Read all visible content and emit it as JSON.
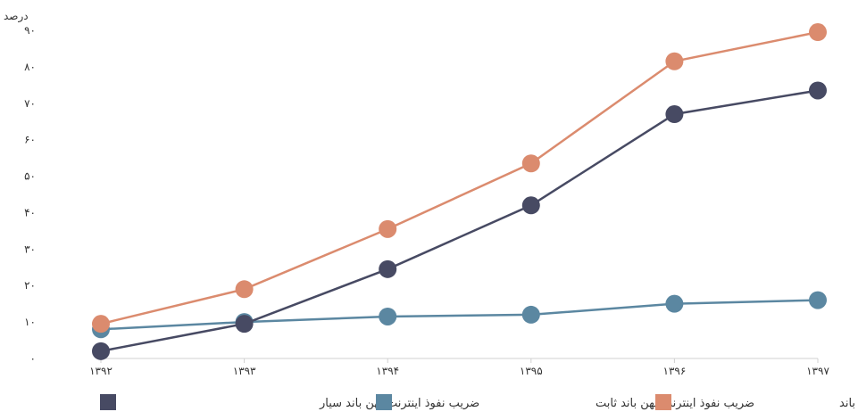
{
  "chart_data": {
    "type": "line",
    "ylabel": "درصد",
    "ylim": [
      0,
      90
    ],
    "yticks": [
      "۰",
      "۱۰",
      "۲۰",
      "۳۰",
      "۴۰",
      "۵۰",
      "۶۰",
      "۷۰",
      "۸۰",
      "۹۰"
    ],
    "categories": [
      "۱۳۹۲",
      "۱۳۹۳",
      "۱۳۹۴",
      "۱۳۹۵",
      "۱۳۹۶",
      "۱۳۹۷"
    ],
    "grid": false,
    "legend_position": "bottom",
    "series": [
      {
        "name": "ضریب نفوذ اینترنت پهن باند سیار",
        "color": "#474a63",
        "values": [
          2,
          9.5,
          24.5,
          42,
          67,
          73.5
        ]
      },
      {
        "name": "ضریب نفوذ اینترنت پهن باند ثابت",
        "color": "#5b87a1",
        "values": [
          8,
          10,
          11.5,
          12,
          15,
          16
        ]
      },
      {
        "name": "ضریب نفوذ اینترنت پهن باند",
        "color": "#db8b6e",
        "values": [
          9.5,
          19,
          35.5,
          53.5,
          81.5,
          89.5
        ]
      }
    ]
  }
}
